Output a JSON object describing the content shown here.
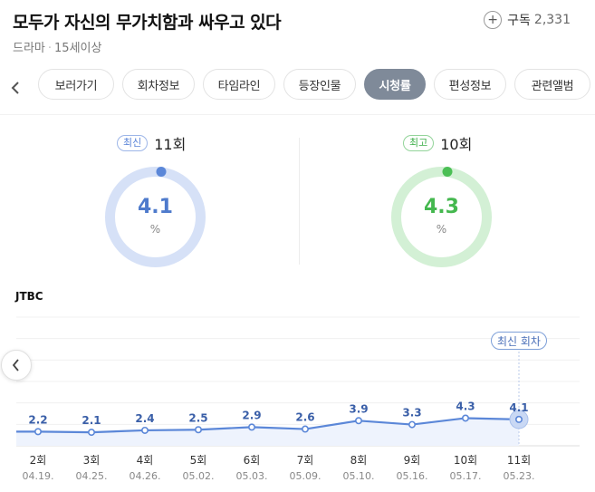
{
  "header": {
    "title": "모두가 자신의 무가치함과 싸우고 있다",
    "genre": "드라마",
    "rating": "15세이상",
    "subscribe_label": "구독",
    "subscribe_count": "2,331"
  },
  "tabs": [
    "보러가기",
    "회차정보",
    "타임라인",
    "등장인물",
    "시청률",
    "편성정보",
    "관련앨범"
  ],
  "active_tab": "시청률",
  "latest": {
    "badge": "최신",
    "episode": "11회",
    "value": "4.1",
    "unit": "%",
    "color": "#5b87d8"
  },
  "best": {
    "badge": "최고",
    "episode": "10회",
    "value": "4.3",
    "unit": "%",
    "color": "#4bbf55"
  },
  "channel": "JTBC",
  "latest_marker": "최신 회차",
  "colors": {
    "line": "#5b87d8",
    "fill": "#eef3fd",
    "donut_blue_bg": "#d6e1f7",
    "donut_green_bg": "#d3f0d5"
  },
  "chart_data": {
    "type": "line",
    "categories": [
      "2회",
      "3회",
      "4회",
      "5회",
      "6회",
      "7회",
      "8회",
      "9회",
      "10회",
      "11회"
    ],
    "dates": [
      "04.19.",
      "04.25.",
      "04.26.",
      "05.02.",
      "05.03.",
      "05.09.",
      "05.10.",
      "05.16.",
      "05.17.",
      "05.23."
    ],
    "values": [
      2.2,
      2.1,
      2.4,
      2.5,
      2.9,
      2.6,
      3.9,
      3.3,
      4.3,
      4.1
    ],
    "ylim": [
      0,
      20
    ]
  }
}
